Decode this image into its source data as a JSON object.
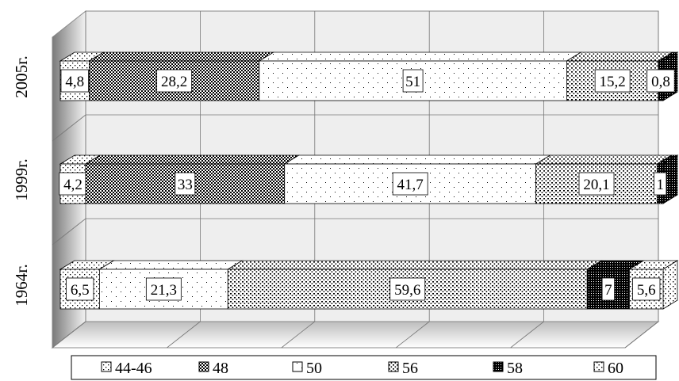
{
  "chart_data": {
    "type": "bar",
    "orientation": "horizontal",
    "stacked": "percent",
    "style": "3d",
    "categories": [
      "1964г.",
      "1999г.",
      "2005г."
    ],
    "series": [
      {
        "name": "44-46",
        "values": [
          6.5,
          4.2,
          4.8
        ],
        "labels": [
          "6,5",
          "4,2",
          "4,8"
        ]
      },
      {
        "name": "48",
        "values": [
          0,
          33,
          28.2
        ],
        "labels": [
          "",
          "33",
          "28,2"
        ]
      },
      {
        "name": "50",
        "values": [
          21.3,
          41.7,
          51
        ],
        "labels": [
          "21,3",
          "41,7",
          "51"
        ]
      },
      {
        "name": "56",
        "values": [
          59.6,
          20.1,
          15.2
        ],
        "labels": [
          "59,6",
          "20,1",
          "15,2"
        ]
      },
      {
        "name": "58",
        "values": [
          7,
          1,
          0.8
        ],
        "labels": [
          "7",
          "1",
          "0,8"
        ]
      },
      {
        "name": "60",
        "values": [
          5.6,
          0,
          0
        ],
        "labels": [
          "5,6",
          "",
          ""
        ]
      }
    ],
    "xlim": [
      0,
      100
    ],
    "grid": true,
    "legend_position": "bottom"
  },
  "legend": [
    "44-46",
    "48",
    "50",
    "56",
    "58",
    "60"
  ],
  "patterns": {
    "44-46": "sparse-dots",
    "48": "checker",
    "50": "fine-dots",
    "56": "medium-dots",
    "58": "dense-dark",
    "60": "sparse-dots-2"
  }
}
